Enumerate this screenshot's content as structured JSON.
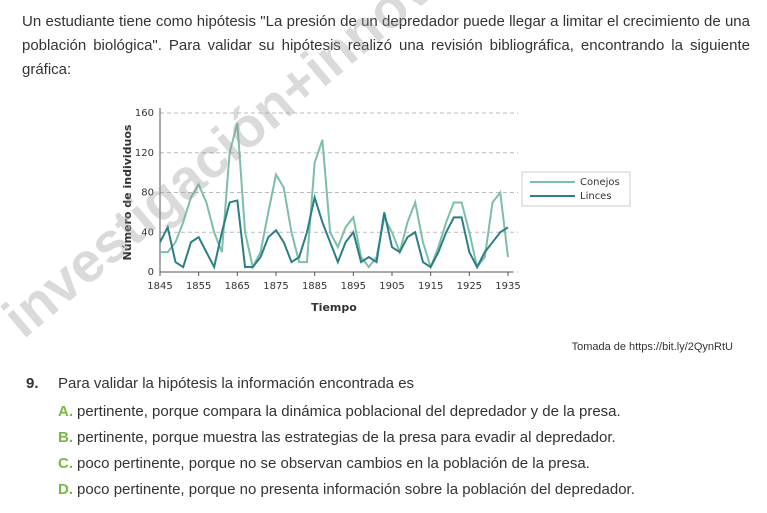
{
  "intro": "Un estudiante tiene como hipótesis \"La presión de un depredador puede llegar a limitar el crecimiento de una población biológica\". Para validar su hipótesis realizó una revisión bibliográfica, encontrando la siguiente gráfica:",
  "watermark": "investigación+innova",
  "chart_data": {
    "type": "line",
    "x_label": "Tiempo",
    "y_label": "Número de individuos",
    "x": [
      1845,
      1847,
      1849,
      1851,
      1853,
      1855,
      1857,
      1859,
      1861,
      1863,
      1865,
      1867,
      1869,
      1871,
      1873,
      1875,
      1877,
      1879,
      1881,
      1883,
      1885,
      1887,
      1889,
      1891,
      1893,
      1895,
      1897,
      1899,
      1901,
      1903,
      1905,
      1907,
      1909,
      1911,
      1913,
      1915,
      1917,
      1919,
      1921,
      1923,
      1925,
      1927,
      1929,
      1931,
      1933,
      1935
    ],
    "series": [
      {
        "name": "Conejos",
        "color": "#7dbea6",
        "values": [
          20,
          20,
          30,
          50,
          75,
          88,
          70,
          40,
          20,
          120,
          150,
          40,
          5,
          20,
          60,
          98,
          85,
          40,
          10,
          10,
          110,
          133,
          40,
          25,
          45,
          55,
          15,
          5,
          15,
          55,
          40,
          20,
          50,
          70,
          30,
          5,
          25,
          50,
          70,
          70,
          40,
          5,
          15,
          70,
          80,
          15
        ]
      },
      {
        "name": "Linces",
        "color": "#2a7f84",
        "values": [
          30,
          45,
          10,
          5,
          30,
          35,
          20,
          5,
          40,
          70,
          72,
          5,
          5,
          15,
          35,
          42,
          30,
          10,
          15,
          40,
          75,
          50,
          30,
          10,
          30,
          40,
          10,
          15,
          10,
          60,
          25,
          20,
          35,
          40,
          10,
          5,
          20,
          40,
          55,
          55,
          20,
          5,
          20,
          30,
          40,
          45
        ]
      }
    ],
    "xlim": [
      1845,
      1935
    ],
    "xticks": [
      1845,
      1855,
      1865,
      1875,
      1885,
      1895,
      1905,
      1915,
      1925,
      1935
    ],
    "ylim": [
      0,
      160
    ],
    "yticks": [
      0,
      40,
      80,
      120,
      160
    ],
    "grid": true
  },
  "source": "Tomada de https://bit.ly/2QynRtU",
  "question": {
    "number": "9.",
    "text": "Para validar la hipótesis la información encontrada es"
  },
  "options": [
    {
      "letter": "A.",
      "text": "pertinente, porque compara la dinámica poblacional del depredador y de la presa."
    },
    {
      "letter": "B.",
      "text": "pertinente, porque muestra las estrategias de la presa para evadir al depredador."
    },
    {
      "letter": "C.",
      "text": "poco pertinente, porque no se observan cambios en la población de la presa."
    },
    {
      "letter": "D.",
      "text": "poco pertinente, porque no presenta información sobre la población del depredador."
    }
  ]
}
